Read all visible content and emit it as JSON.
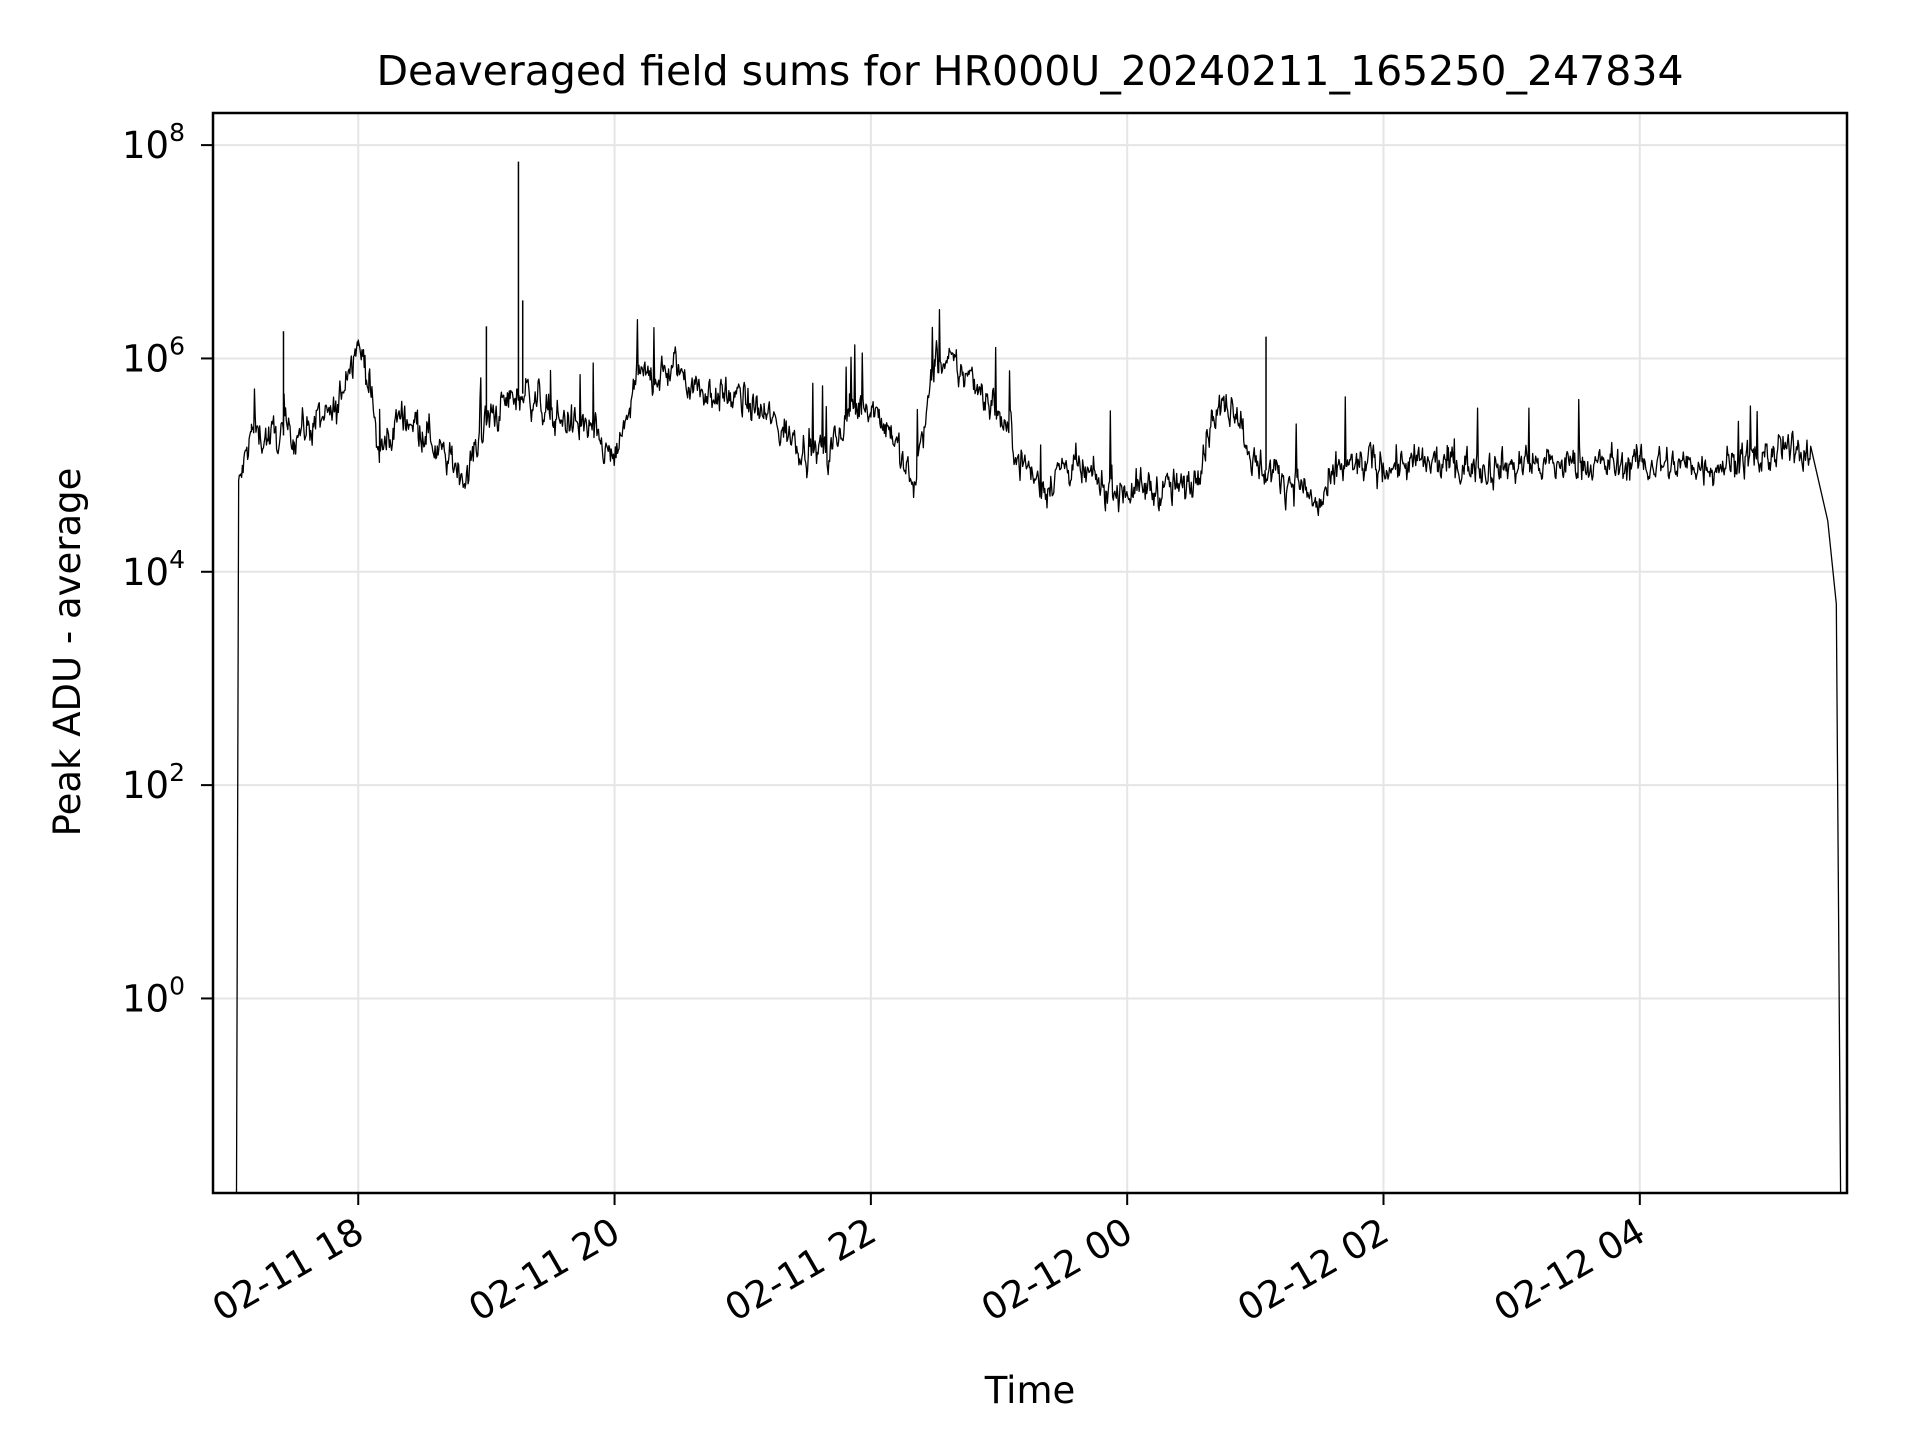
{
  "chart_data": {
    "type": "line",
    "title": "Deaveraged field sums for HR000U_20240211_165250_247834",
    "xlabel": "Time",
    "ylabel": "Peak ADU - average",
    "y_scale": "log",
    "ylim": [
      0.015,
      200000000
    ],
    "xlim": [
      "2024-02-11 16:52",
      "2024-02-12 05:37"
    ],
    "grid": true,
    "line_color": "#000000",
    "grid_color": "#e5e5e5",
    "x_ticks": [
      {
        "label": "02-11 18",
        "value": "2024-02-11 18:00"
      },
      {
        "label": "02-11 20",
        "value": "2024-02-11 20:00"
      },
      {
        "label": "02-11 22",
        "value": "2024-02-11 22:00"
      },
      {
        "label": "02-12 00",
        "value": "2024-02-12 00:00"
      },
      {
        "label": "02-12 02",
        "value": "2024-02-12 02:00"
      },
      {
        "label": "02-12 04",
        "value": "2024-02-12 04:00"
      }
    ],
    "y_ticks": [
      {
        "base": "10",
        "exp": "0",
        "value": 1
      },
      {
        "base": "10",
        "exp": "2",
        "value": 100
      },
      {
        "base": "10",
        "exp": "4",
        "value": 10000
      },
      {
        "base": "10",
        "exp": "6",
        "value": 1000000
      },
      {
        "base": "10",
        "exp": "8",
        "value": 100000000
      }
    ],
    "series": [
      {
        "x": [
          "2024-02-11 17:03",
          "2024-02-11 17:04",
          "2024-02-11 17:10",
          "2024-02-11 17:20",
          "2024-02-11 17:30",
          "2024-02-11 17:40",
          "2024-02-11 17:50",
          "2024-02-11 17:55",
          "2024-02-11 18:00",
          "2024-02-11 18:05",
          "2024-02-11 18:10",
          "2024-02-11 18:20",
          "2024-02-11 18:30",
          "2024-02-11 18:40",
          "2024-02-11 18:50",
          "2024-02-11 19:00",
          "2024-02-11 19:10",
          "2024-02-11 19:20",
          "2024-02-11 19:30",
          "2024-02-11 19:40",
          "2024-02-11 19:50",
          "2024-02-11 20:00",
          "2024-02-11 20:10",
          "2024-02-11 20:20",
          "2024-02-11 20:30",
          "2024-02-11 20:40",
          "2024-02-11 20:50",
          "2024-02-11 21:00",
          "2024-02-11 21:10",
          "2024-02-11 21:20",
          "2024-02-11 21:30",
          "2024-02-11 21:40",
          "2024-02-11 21:50",
          "2024-02-11 22:00",
          "2024-02-11 22:10",
          "2024-02-11 22:20",
          "2024-02-11 22:30",
          "2024-02-11 22:40",
          "2024-02-11 22:50",
          "2024-02-11 23:00",
          "2024-02-11 23:10",
          "2024-02-11 23:20",
          "2024-02-11 23:30",
          "2024-02-11 23:40",
          "2024-02-11 23:50",
          "2024-02-12 00:00",
          "2024-02-12 00:10",
          "2024-02-12 00:20",
          "2024-02-12 00:30",
          "2024-02-12 00:40",
          "2024-02-12 00:50",
          "2024-02-12 01:00",
          "2024-02-12 01:10",
          "2024-02-12 01:20",
          "2024-02-12 01:30",
          "2024-02-12 01:40",
          "2024-02-12 01:50",
          "2024-02-12 02:00",
          "2024-02-12 02:30",
          "2024-02-12 03:00",
          "2024-02-12 03:30",
          "2024-02-12 04:00",
          "2024-02-12 04:30",
          "2024-02-12 05:00",
          "2024-02-12 05:20",
          "2024-02-12 05:28",
          "2024-02-12 05:32",
          "2024-02-12 05:34"
        ],
        "y": [
          0.015,
          60000,
          200000,
          180000,
          200000,
          250000,
          300000,
          900000,
          1500000,
          600000,
          120000,
          300000,
          250000,
          120000,
          80000,
          250000,
          400000,
          500000,
          300000,
          250000,
          200000,
          100000,
          600000,
          700000,
          800000,
          500000,
          450000,
          400000,
          300000,
          200000,
          150000,
          120000,
          300000,
          400000,
          200000,
          60000,
          900000,
          800000,
          600000,
          300000,
          120000,
          60000,
          100000,
          80000,
          60000,
          60000,
          60000,
          60000,
          60000,
          300000,
          400000,
          100000,
          80000,
          70000,
          40000,
          90000,
          100000,
          100000,
          100000,
          100000,
          100000,
          100000,
          100000,
          120000,
          150000,
          30000,
          5000,
          0.015
        ]
      }
    ],
    "spikes": [
      {
        "x": "2024-02-11 17:25",
        "y": 1800000
      },
      {
        "x": "2024-02-11 19:00",
        "y": 2000000
      },
      {
        "x": "2024-02-11 19:15",
        "y": 70000000
      },
      {
        "x": "2024-02-11 19:17",
        "y": 3500000
      },
      {
        "x": "2024-02-12 01:05",
        "y": 1600000
      }
    ]
  }
}
